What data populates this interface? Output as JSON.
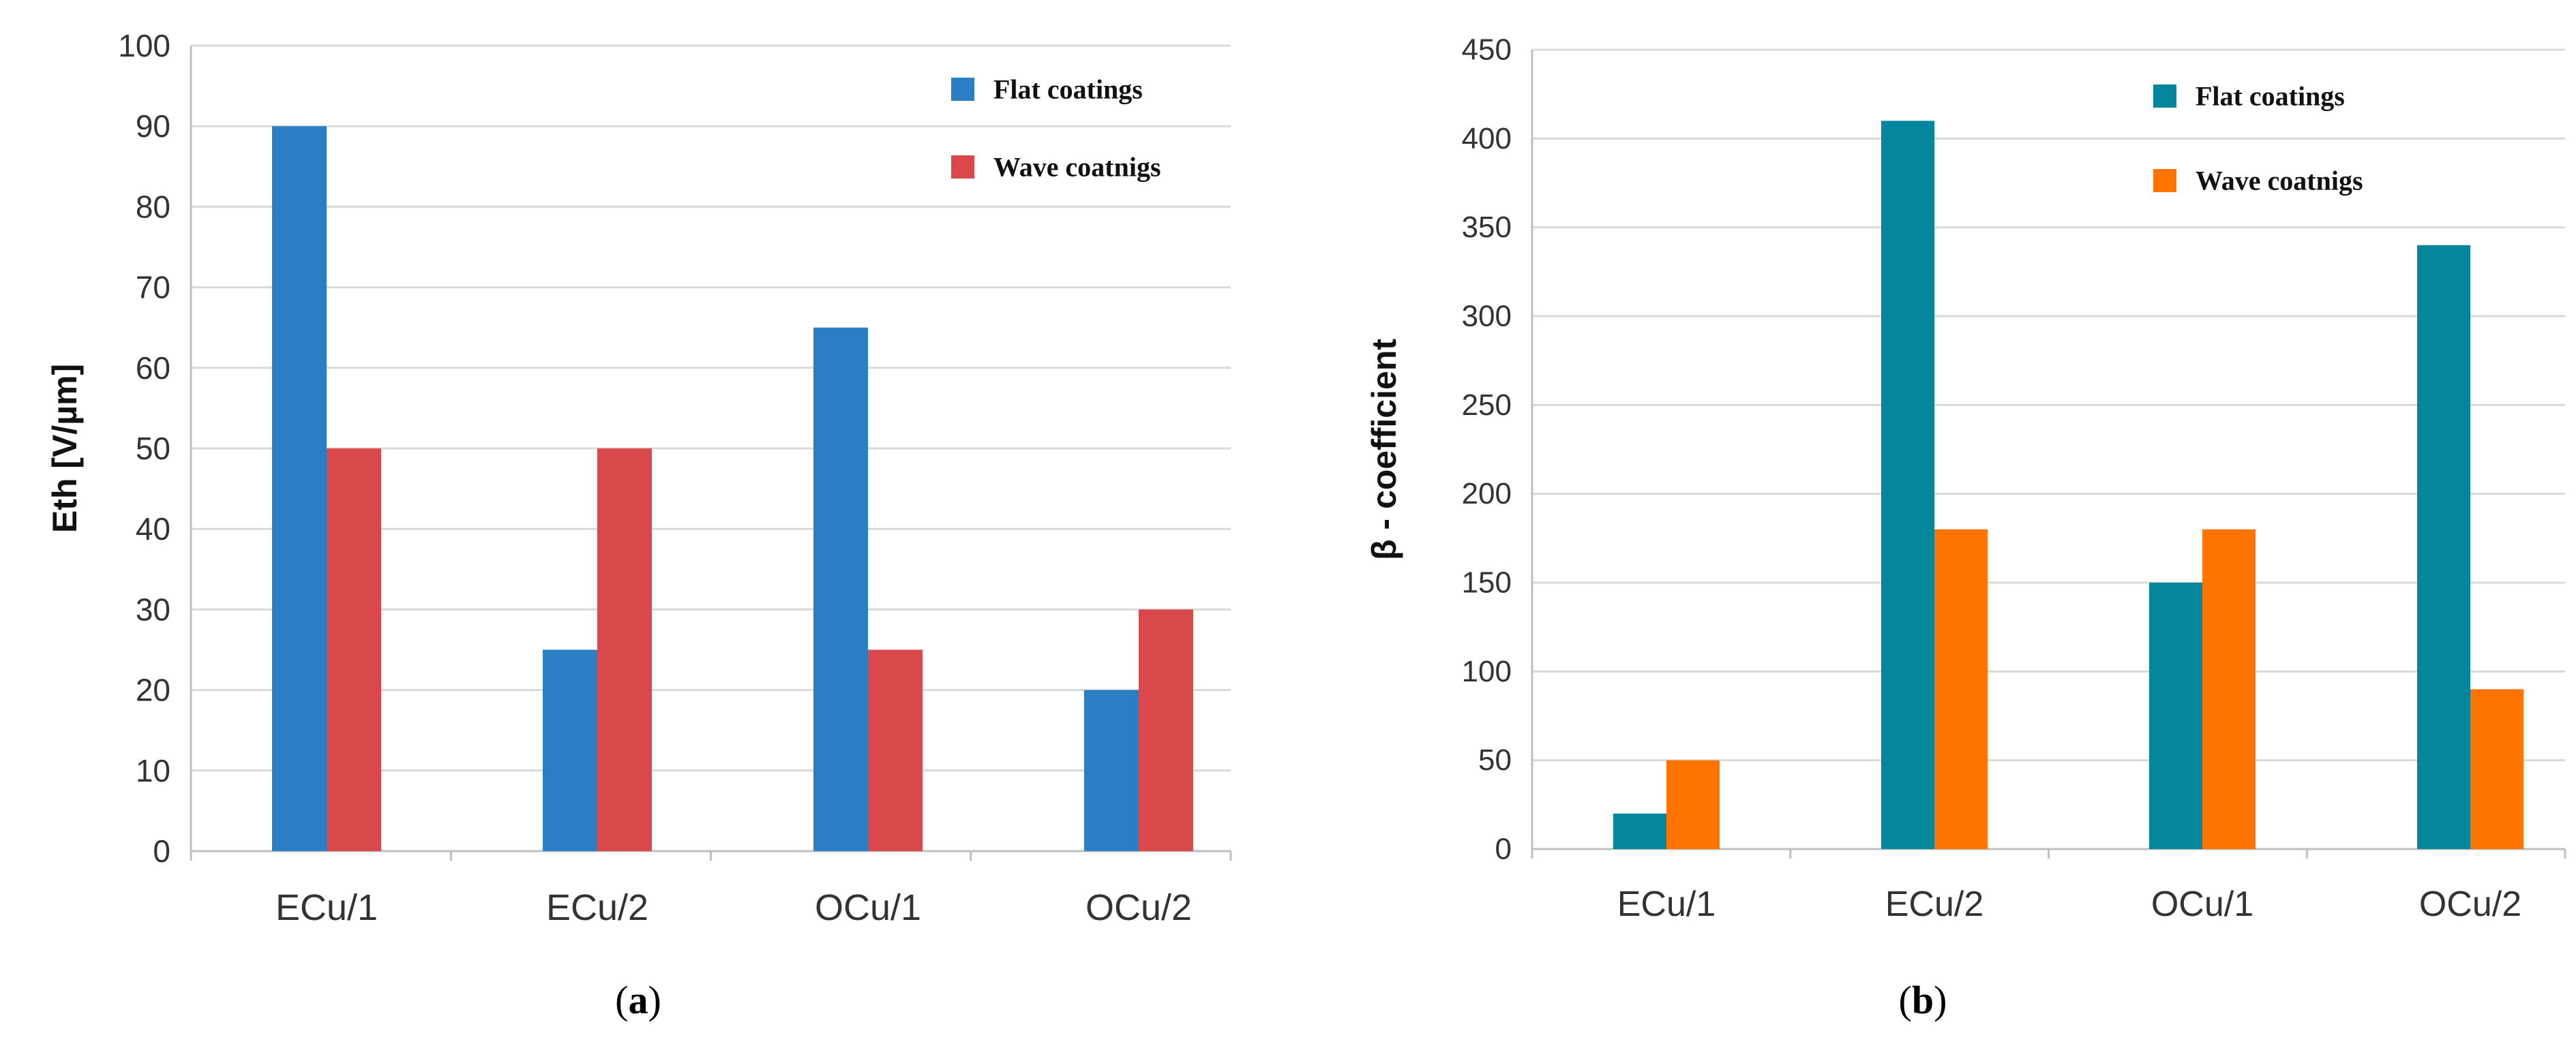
{
  "figure": {
    "panels": [
      {
        "caption_letter": "a",
        "chart_index": 0
      },
      {
        "caption_letter": "b",
        "chart_index": 1
      }
    ]
  },
  "chart_data": [
    {
      "type": "bar",
      "title": "",
      "xlabel": "",
      "ylabel": "Eth [V/µm]",
      "categories": [
        "ECu/1",
        "ECu/2",
        "OCu/1",
        "OCu/2"
      ],
      "series": [
        {
          "name": "Flat coatings",
          "color": "#2a7fc4",
          "values": [
            90,
            25,
            65,
            20
          ]
        },
        {
          "name": "Wave coatnigs",
          "color": "#d9494c",
          "values": [
            50,
            50,
            25,
            30
          ]
        }
      ],
      "ylim": [
        0,
        100
      ],
      "yticks": [
        "0",
        "10",
        "20",
        "30",
        "40",
        "50",
        "60",
        "70",
        "80",
        "90",
        "100"
      ],
      "grid": true,
      "legend": "top-right"
    },
    {
      "type": "bar",
      "title": "",
      "xlabel": "",
      "ylabel": "β - coefficient",
      "categories": [
        "ECu/1",
        "ECu/2",
        "OCu/1",
        "OCu/2"
      ],
      "series": [
        {
          "name": "Flat coatings",
          "color": "#04879c",
          "values": [
            20,
            410,
            150,
            340
          ]
        },
        {
          "name": "Wave coatnigs",
          "color": "#ff7300",
          "values": [
            50,
            180,
            180,
            90
          ]
        }
      ],
      "ylim": [
        0,
        450
      ],
      "yticks": [
        "0",
        "50",
        "100",
        "150",
        "200",
        "250",
        "300",
        "350",
        "400",
        "450"
      ],
      "grid": true,
      "legend": "top-right"
    }
  ]
}
